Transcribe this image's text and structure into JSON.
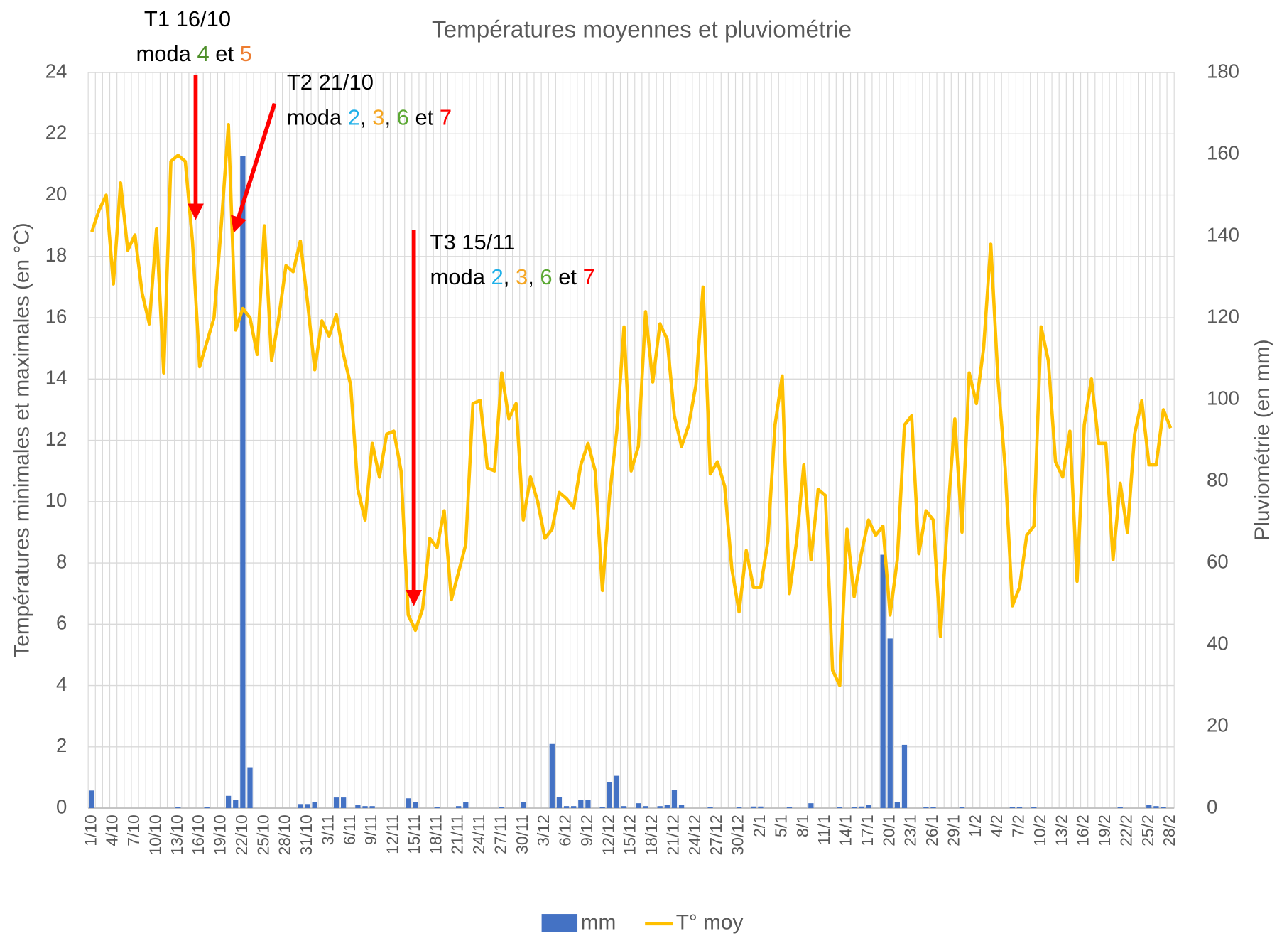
{
  "chart_data": {
    "type": "bar_line",
    "title": "Températures  moyennes et pluviométrie",
    "y_label": "Températures minimales et maximales (en °C)",
    "y2_label": "Pluviométrie (en mm)",
    "categories": [
      "1/10",
      null,
      null,
      "4/10",
      null,
      null,
      "7/10",
      null,
      null,
      "10/10",
      null,
      null,
      "13/10",
      null,
      null,
      "16/10",
      null,
      null,
      "19/10",
      null,
      null,
      "22/10",
      null,
      null,
      "25/10",
      null,
      null,
      "28/10",
      null,
      null,
      "31/10",
      null,
      null,
      "3/11",
      null,
      null,
      "6/11",
      null,
      null,
      "9/11",
      null,
      null,
      "12/11",
      null,
      null,
      "15/11",
      null,
      null,
      "18/11",
      null,
      null,
      "21/11",
      null,
      null,
      "24/11",
      null,
      null,
      "27/11",
      null,
      null,
      "30/11",
      null,
      null,
      "3/12",
      null,
      null,
      "6/12",
      null,
      null,
      "9/12",
      null,
      null,
      "12/12",
      null,
      null,
      "15/12",
      null,
      null,
      "18/12",
      null,
      null,
      "21/12",
      null,
      null,
      "24/12",
      null,
      null,
      "27/12",
      null,
      null,
      "30/12",
      null,
      null,
      "2/1",
      null,
      null,
      "5/1",
      null,
      null,
      "8/1",
      null,
      null,
      "11/1",
      null,
      null,
      "14/1",
      null,
      null,
      "17/1",
      null,
      null,
      "20/1",
      null,
      null,
      "23/1",
      null,
      null,
      "26/1",
      null,
      null,
      "29/1",
      null,
      null,
      "1/2",
      null,
      null,
      "4/2",
      null,
      null,
      "7/2",
      null,
      null,
      "10/2",
      null,
      null,
      "13/2",
      null,
      null,
      "16/2",
      null,
      null,
      "19/2",
      null,
      null,
      "22/2",
      null,
      null,
      "25/2",
      null,
      null,
      "28/2"
    ],
    "series": [
      {
        "name": "mm",
        "type": "bar",
        "axis": "y2",
        "color": "#4472c4",
        "values": [
          4.3,
          0,
          0,
          0,
          0,
          0,
          0,
          0,
          0,
          0,
          0,
          0,
          0.3,
          0,
          0,
          0,
          0.3,
          0,
          0,
          3,
          2,
          159.5,
          10,
          0,
          0,
          0,
          0,
          0,
          0,
          1,
          1,
          1.5,
          0,
          0,
          2.6,
          2.6,
          0,
          0.7,
          0.5,
          0.5,
          0,
          0,
          0,
          0,
          2.4,
          1.5,
          0,
          0,
          0.3,
          0,
          0,
          0.5,
          1.5,
          0,
          0,
          0,
          0,
          0.3,
          0,
          0,
          1.5,
          0,
          0,
          0,
          15.7,
          2.7,
          0.5,
          0.5,
          2,
          2,
          0,
          0.3,
          6.3,
          7.9,
          0.5,
          0,
          1.2,
          0.5,
          0,
          0.5,
          0.8,
          4.5,
          0.8,
          0,
          0,
          0,
          0.3,
          0,
          0,
          0,
          0.3,
          0,
          0.4,
          0.4,
          0,
          0,
          0,
          0.3,
          0,
          0,
          1.2,
          0,
          0,
          0,
          0.3,
          0,
          0.3,
          0.4,
          0.8,
          0,
          62,
          41.5,
          1.5,
          15.5,
          0,
          0,
          0.3,
          0.3,
          0,
          0,
          0,
          0.3,
          0,
          0,
          0,
          0,
          0,
          0,
          0.3,
          0.3,
          0,
          0.3,
          0,
          0,
          0,
          0,
          0,
          0,
          0,
          0,
          0,
          0,
          0,
          0.3,
          0,
          0,
          0,
          0.8,
          0.5,
          0.3,
          0
        ]
      },
      {
        "name": "T° moy",
        "type": "line",
        "axis": "y",
        "color": "#ffc000",
        "values": [
          18.8,
          19.5,
          20.0,
          17.1,
          20.4,
          18.2,
          18.7,
          16.8,
          15.8,
          18.9,
          14.2,
          21.1,
          21.3,
          21.1,
          18.5,
          14.4,
          15.2,
          16.0,
          19.0,
          22.3,
          15.6,
          16.3,
          16.0,
          14.8,
          19.0,
          14.6,
          16.0,
          17.7,
          17.5,
          18.5,
          16.5,
          14.3,
          15.9,
          15.4,
          16.1,
          14.8,
          13.8,
          10.4,
          9.4,
          11.9,
          10.8,
          12.2,
          12.3,
          11.0,
          6.3,
          5.8,
          6.5,
          8.8,
          8.5,
          9.7,
          6.8,
          7.7,
          8.6,
          13.2,
          13.3,
          11.1,
          11.0,
          14.2,
          12.7,
          13.2,
          9.4,
          10.8,
          10.0,
          8.8,
          9.1,
          10.3,
          10.1,
          9.8,
          11.2,
          11.9,
          11.0,
          7.1,
          10.2,
          12.3,
          15.7,
          11.0,
          11.8,
          16.2,
          13.9,
          15.8,
          15.3,
          12.8,
          11.8,
          12.5,
          13.8,
          17.0,
          10.9,
          11.3,
          10.5,
          7.8,
          6.4,
          8.4,
          7.2,
          7.2,
          8.7,
          12.5,
          14.1,
          7.0,
          8.7,
          11.2,
          8.1,
          10.4,
          10.2,
          4.5,
          4.0,
          9.1,
          6.9,
          8.3,
          9.4,
          8.9,
          9.2,
          6.3,
          8.1,
          12.5,
          12.8,
          8.3,
          9.7,
          9.4,
          5.6,
          9.5,
          12.7,
          9.0,
          14.2,
          13.2,
          15.0,
          18.4,
          14.0,
          11.1,
          6.6,
          7.2,
          8.9,
          9.2,
          15.7,
          14.6,
          11.3,
          10.8,
          12.3,
          7.4,
          12.5,
          14.0,
          11.9,
          11.9,
          8.1,
          10.6,
          9.0,
          12.2,
          13.3,
          11.2,
          11.2,
          13.0,
          12.4
        ]
      }
    ],
    "ylim": [
      0,
      24
    ],
    "yticks": [
      0,
      2,
      4,
      6,
      8,
      10,
      12,
      14,
      16,
      18,
      20,
      22,
      24
    ],
    "y2lim": [
      0,
      180
    ],
    "y2ticks": [
      0,
      20,
      40,
      60,
      80,
      100,
      120,
      140,
      160,
      180
    ],
    "grid": true,
    "legend": "bottom",
    "annotations": [
      {
        "title": "T1 16/10",
        "parts": [
          {
            "text": "moda ",
            "color": "#000000"
          },
          {
            "text": "4",
            "color": "#4e8f2a"
          },
          {
            "text": " et ",
            "color": "#000000"
          },
          {
            "text": "5",
            "color": "#ed7d31"
          }
        ]
      },
      {
        "title": "T2 21/10",
        "parts": [
          {
            "text": "moda ",
            "color": "#000000"
          },
          {
            "text": "2",
            "color": "#1fb0e8"
          },
          {
            "text": ", ",
            "color": "#000000"
          },
          {
            "text": "3",
            "color": "#f5a623"
          },
          {
            "text": ", ",
            "color": "#000000"
          },
          {
            "text": "6",
            "color": "#5aa832"
          },
          {
            "text": " et ",
            "color": "#000000"
          },
          {
            "text": "7",
            "color": "#ff0000"
          }
        ]
      },
      {
        "title": "T3 15/11",
        "parts": [
          {
            "text": "moda ",
            "color": "#000000"
          },
          {
            "text": "2",
            "color": "#1fb0e8"
          },
          {
            "text": ", ",
            "color": "#000000"
          },
          {
            "text": "3",
            "color": "#f5a623"
          },
          {
            "text": ", ",
            "color": "#000000"
          },
          {
            "text": "6",
            "color": "#5aa832"
          },
          {
            "text": " et ",
            "color": "#000000"
          },
          {
            "text": "7",
            "color": "#ff0000"
          }
        ]
      }
    ]
  }
}
